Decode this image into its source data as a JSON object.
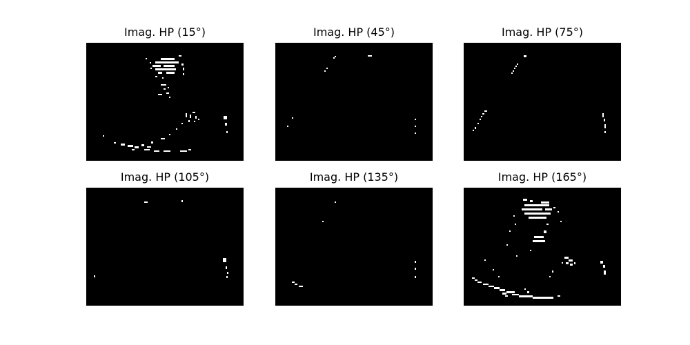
{
  "colors": {
    "background": "#000000",
    "foreground": "#ffffff"
  },
  "panels": [
    {
      "title": "Imag. HP (15°)"
    },
    {
      "title": "Imag. HP (45°)"
    },
    {
      "title": "Imag. HP (75°)"
    },
    {
      "title": "Imag. HP (105°)"
    },
    {
      "title": "Imag. HP (135°)"
    },
    {
      "title": "Imag. HP (165°)"
    }
  ]
}
